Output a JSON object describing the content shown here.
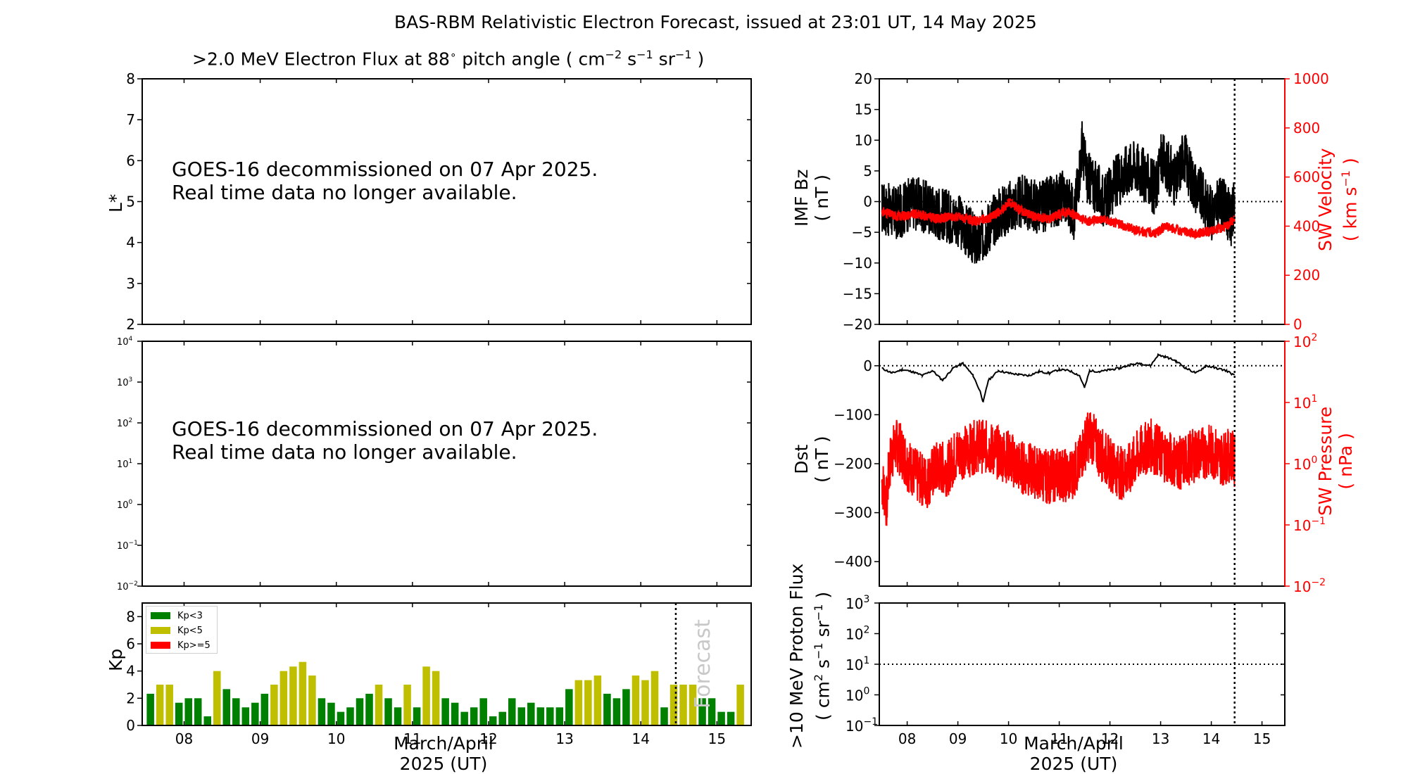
{
  "figure_title": "BAS-RBM Relativistic Electron Forecast, issued at 23:01 UT, 14 May 2025",
  "top_panel_title": ">2.0 MeV Electron Flux at 88",
  "top_panel_title_degree": "∘",
  "top_panel_title_units": "pitch angle ( cm",
  "decommission_message_1": "GOES-16 decommissioned on 07 Apr 2025.\nReal time data no longer available.",
  "decommission_message_2": "GOES-16 decommissioned on 07 Apr 2025.\nReal time data no longer available.",
  "xlabel_line1": "March/April",
  "xlabel_line2": "2025 (UT)",
  "forecast_label": "Forecast",
  "colors": {
    "kp_low": "#008000",
    "kp_mid": "#bfbf00",
    "kp_high": "#ff0000",
    "solar_wind": "#ff0000",
    "main": "#000000"
  },
  "chart_data": [
    {
      "id": "lstar-flux",
      "type": "heatmap",
      "ylabel": "L*",
      "ylim": [
        2,
        8
      ],
      "yticks": [
        2,
        3,
        4,
        5,
        6,
        7,
        8
      ],
      "xlim": [
        7.45,
        15.45
      ],
      "xticks": [
        8,
        9,
        10,
        11,
        12,
        13,
        14,
        15
      ],
      "note": "GOES-16 decommissioned on 07 Apr 2025. Real time data no longer available."
    },
    {
      "id": "flux-log",
      "type": "line",
      "ylim": [
        0.01,
        10000
      ],
      "yscale": "log",
      "ytick_exponents": [
        -2,
        -1,
        0,
        1,
        2,
        3,
        4
      ],
      "xlim": [
        7.45,
        15.45
      ],
      "xticks": [
        8,
        9,
        10,
        11,
        12,
        13,
        14,
        15
      ],
      "series": []
    },
    {
      "id": "kp",
      "type": "bar",
      "ylabel": "Kp",
      "ylim": [
        0,
        9
      ],
      "yticks": [
        0,
        2,
        4,
        6,
        8
      ],
      "xlim": [
        7.45,
        15.45
      ],
      "xticks": [
        8,
        9,
        10,
        11,
        12,
        13,
        14,
        15
      ],
      "xticklabels": [
        "08",
        "09",
        "10",
        "11",
        "12",
        "13",
        "14",
        "15"
      ],
      "forecast_start": 14.46,
      "bar_width_days": 0.125,
      "legend": [
        "Kp<3",
        "Kp<5",
        "Kp>=5"
      ],
      "legend_position": "top-left",
      "first_bar_day": 7.5,
      "values": [
        2.33,
        3.0,
        3.0,
        1.67,
        2.0,
        2.0,
        0.67,
        4.0,
        2.67,
        2.0,
        1.33,
        1.67,
        2.33,
        3.0,
        4.0,
        4.33,
        4.67,
        3.67,
        2.0,
        1.67,
        1.0,
        1.33,
        2.0,
        2.33,
        3.0,
        2.0,
        1.33,
        3.0,
        1.33,
        4.33,
        4.0,
        2.0,
        1.67,
        1.0,
        1.33,
        2.0,
        0.67,
        1.0,
        2.0,
        1.33,
        1.67,
        1.33,
        1.33,
        1.33,
        2.67,
        3.33,
        3.33,
        3.67,
        2.33,
        2.0,
        2.67,
        3.67,
        3.33,
        4.0,
        1.33,
        3.0,
        3.0,
        3.0,
        2.0,
        2.0,
        1.0,
        1.0,
        3.0
      ]
    },
    {
      "id": "imf-bz",
      "type": "line",
      "ylabel": "IMF Bz",
      "ylabel_units": "( nT )",
      "ylim": [
        -20,
        20
      ],
      "yticks": [
        -20,
        -15,
        -10,
        -5,
        0,
        5,
        10,
        15,
        20
      ],
      "y2label": "SW Velocity",
      "y2label_units": "( km s",
      "y2lim": [
        0,
        1000
      ],
      "y2ticks": [
        0,
        200,
        400,
        600,
        800,
        1000
      ],
      "xlim": [
        7.45,
        15.45
      ],
      "now_line": 14.46,
      "series": [
        {
          "color": "#000000",
          "x": [
            7.5,
            7.8,
            8.1,
            8.4,
            8.7,
            9.0,
            9.2,
            9.4,
            9.6,
            9.8,
            10.0,
            10.3,
            10.6,
            10.9,
            11.1,
            11.3,
            11.45,
            11.55,
            11.75,
            11.9,
            12.1,
            12.3,
            12.5,
            12.7,
            12.9,
            13.0,
            13.2,
            13.3,
            13.45,
            13.6,
            13.8,
            14.0,
            14.2,
            14.4,
            14.46
          ],
          "y": [
            -1,
            -2,
            0,
            -1,
            -2,
            -3,
            -5,
            -7,
            -4,
            -2,
            -1,
            0,
            -1,
            0,
            1,
            -2,
            9,
            4,
            2,
            0,
            3,
            5,
            6,
            4,
            2,
            7,
            5,
            3,
            8,
            4,
            1,
            -2,
            0,
            -3,
            0
          ]
        },
        {
          "color": "#ff0000",
          "x": [
            7.5,
            7.8,
            8.2,
            8.6,
            9.0,
            9.3,
            9.6,
            9.9,
            10.0,
            10.2,
            10.5,
            10.8,
            11.0,
            11.2,
            11.4,
            11.6,
            11.8,
            12.0,
            12.3,
            12.6,
            12.9,
            13.1,
            13.4,
            13.7,
            14.0,
            14.3,
            14.46
          ],
          "y": [
            460,
            440,
            450,
            430,
            440,
            420,
            430,
            470,
            500,
            470,
            440,
            430,
            450,
            460,
            430,
            420,
            430,
            420,
            400,
            380,
            370,
            400,
            380,
            370,
            380,
            400,
            430
          ]
        }
      ]
    },
    {
      "id": "dst-pressure",
      "type": "line",
      "ylabel": "Dst",
      "ylabel_units": "( nT )",
      "ylim": [
        -450,
        50
      ],
      "yticks": [
        -400,
        -300,
        -200,
        -100,
        0
      ],
      "y2label": "SW Pressure",
      "y2label_units": "( nPa )",
      "y2scale": "log",
      "y2lim": [
        0.01,
        100
      ],
      "y2tick_exponents": [
        -2,
        -1,
        0,
        1,
        2
      ],
      "xlim": [
        7.45,
        15.45
      ],
      "now_line": 14.46,
      "series": [
        {
          "color": "#000000",
          "x": [
            7.5,
            7.7,
            7.9,
            8.1,
            8.3,
            8.5,
            8.7,
            8.9,
            9.1,
            9.3,
            9.45,
            9.5,
            9.6,
            9.8,
            10.0,
            10.2,
            10.4,
            10.6,
            10.8,
            11.0,
            11.2,
            11.4,
            11.5,
            11.6,
            11.8,
            12.0,
            12.2,
            12.4,
            12.6,
            12.8,
            12.95,
            13.1,
            13.3,
            13.5,
            13.7,
            13.9,
            14.1,
            14.3,
            14.46
          ],
          "y": [
            -5,
            -15,
            -8,
            -12,
            -20,
            -10,
            -30,
            -5,
            5,
            -20,
            -55,
            -75,
            -30,
            -10,
            -15,
            -18,
            -20,
            -12,
            -15,
            -8,
            -10,
            -20,
            -45,
            -10,
            -12,
            -8,
            -5,
            2,
            5,
            0,
            22,
            18,
            10,
            -5,
            -15,
            0,
            -5,
            -10,
            -20
          ]
        },
        {
          "color": "#ff0000",
          "x": [
            7.5,
            7.6,
            7.7,
            7.8,
            8.0,
            8.2,
            8.4,
            8.6,
            8.8,
            9.0,
            9.2,
            9.4,
            9.6,
            9.8,
            10.0,
            10.2,
            10.4,
            10.6,
            10.8,
            11.0,
            11.2,
            11.4,
            11.6,
            11.8,
            12.0,
            12.2,
            12.4,
            12.6,
            12.8,
            13.0,
            13.2,
            13.4,
            13.6,
            13.8,
            14.0,
            14.2,
            14.4,
            14.46
          ],
          "y": [
            0.5,
            0.2,
            1.5,
            2.0,
            1.0,
            0.6,
            0.5,
            0.9,
            0.8,
            1.5,
            1.6,
            2.0,
            1.8,
            1.5,
            1.3,
            0.9,
            0.8,
            0.7,
            0.6,
            0.7,
            0.6,
            1.0,
            3.0,
            1.5,
            1.0,
            0.7,
            0.8,
            1.5,
            2.0,
            1.5,
            1.2,
            1.0,
            1.3,
            1.5,
            1.6,
            1.2,
            1.4,
            1.0
          ]
        }
      ]
    },
    {
      "id": "proton-flux",
      "type": "line",
      "ylabel": ">10 MeV Proton Flux",
      "ylabel_units": "( cm",
      "yscale": "log",
      "ylim": [
        0.1,
        1000
      ],
      "ytick_exponents": [
        -1,
        0,
        1,
        2,
        3
      ],
      "threshold": 10,
      "xlim": [
        7.45,
        15.45
      ],
      "xticks": [
        8,
        9,
        10,
        11,
        12,
        13,
        14,
        15
      ],
      "xticklabels": [
        "08",
        "09",
        "10",
        "11",
        "12",
        "13",
        "14",
        "15"
      ],
      "now_line": 14.46,
      "series": []
    }
  ]
}
